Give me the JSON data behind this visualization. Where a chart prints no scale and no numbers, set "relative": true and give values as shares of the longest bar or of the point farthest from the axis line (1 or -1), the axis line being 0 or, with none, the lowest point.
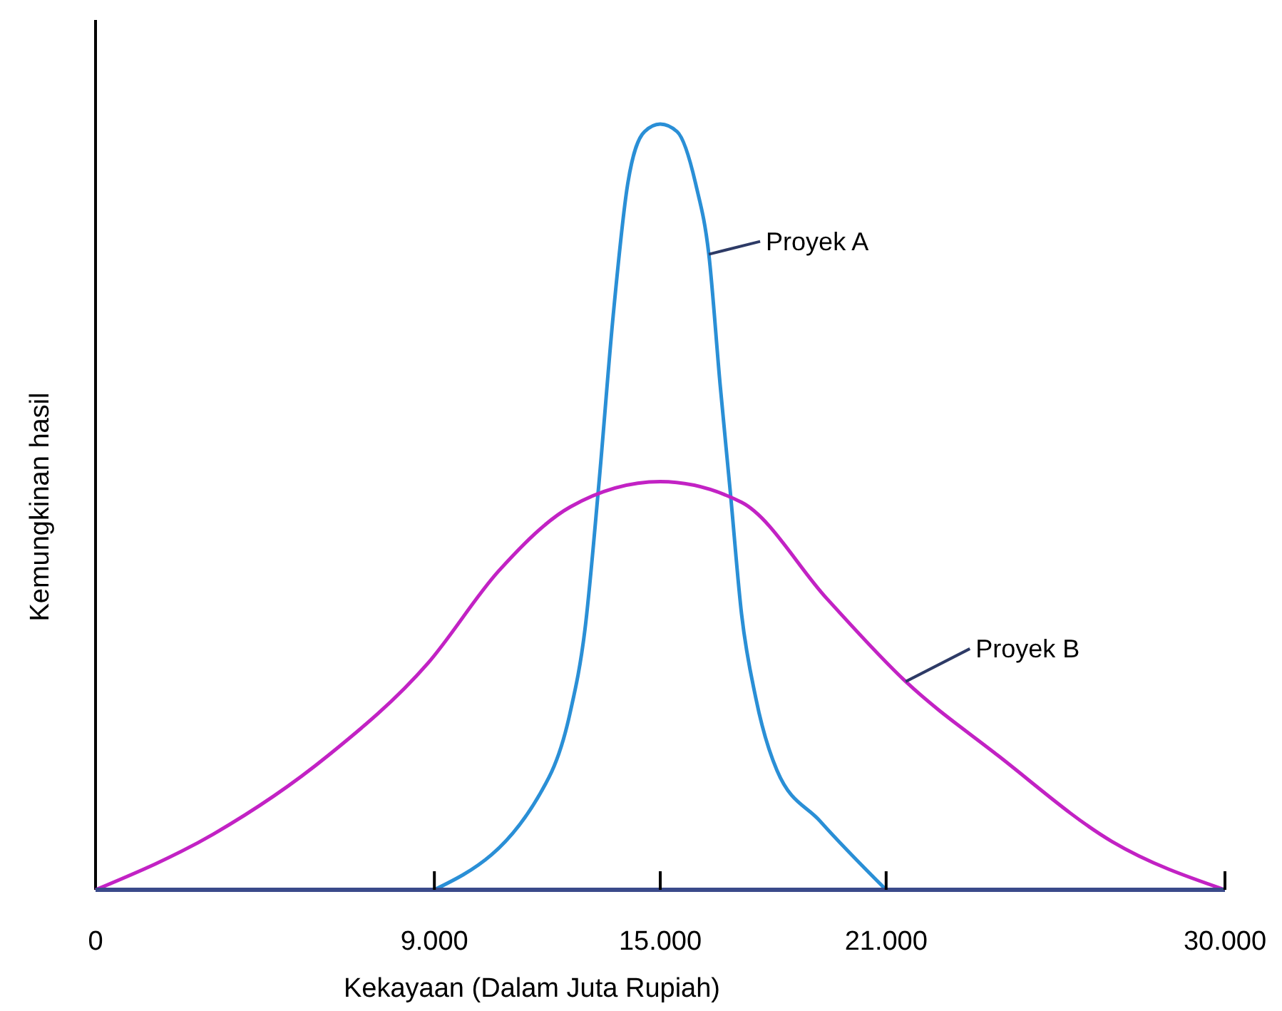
{
  "chart_data": {
    "type": "line",
    "relative": true,
    "xlabel": "Kekayaan (Dalam Juta Rupiah)",
    "ylabel": "Kemungkinan hasil",
    "xlim": [
      0,
      30000
    ],
    "xticks": [
      0,
      {
        "value": 9000,
        "label": "9.000"
      },
      {
        "value": 15000,
        "label": "15.000"
      },
      {
        "value": 21000,
        "label": "21.000"
      },
      {
        "value": 30000,
        "label": "30.000"
      }
    ],
    "marker": "none",
    "line_style": "solid",
    "grid": false,
    "series": [
      {
        "name": "Proyek A",
        "color": "#2a8fd6",
        "x": [
          9000,
          12045,
          12600,
          13000,
          13370,
          13750,
          14130,
          14580,
          15000,
          15450,
          15950,
          16290,
          16590,
          16860,
          17160,
          17540,
          18100,
          19240,
          21000
        ],
        "values": [
          0,
          0.147,
          0.23,
          0.34,
          0.53,
          0.75,
          0.92,
          0.99,
          1,
          0.99,
          0.92,
          0.83,
          0.66,
          0.52,
          0.36,
          0.25,
          0.156,
          0.09,
          0
        ]
      },
      {
        "name": "Proyek B",
        "color": "#c222c4",
        "x": [
          0,
          3140,
          6170,
          8830,
          10720,
          12610,
          15000,
          17160,
          19430,
          21520,
          23980,
          27000,
          30000
        ],
        "values": [
          0,
          0.073,
          0.175,
          0.296,
          0.417,
          0.5,
          0.533,
          0.506,
          0.38,
          0.272,
          0.175,
          0.063,
          0
        ]
      }
    ]
  }
}
